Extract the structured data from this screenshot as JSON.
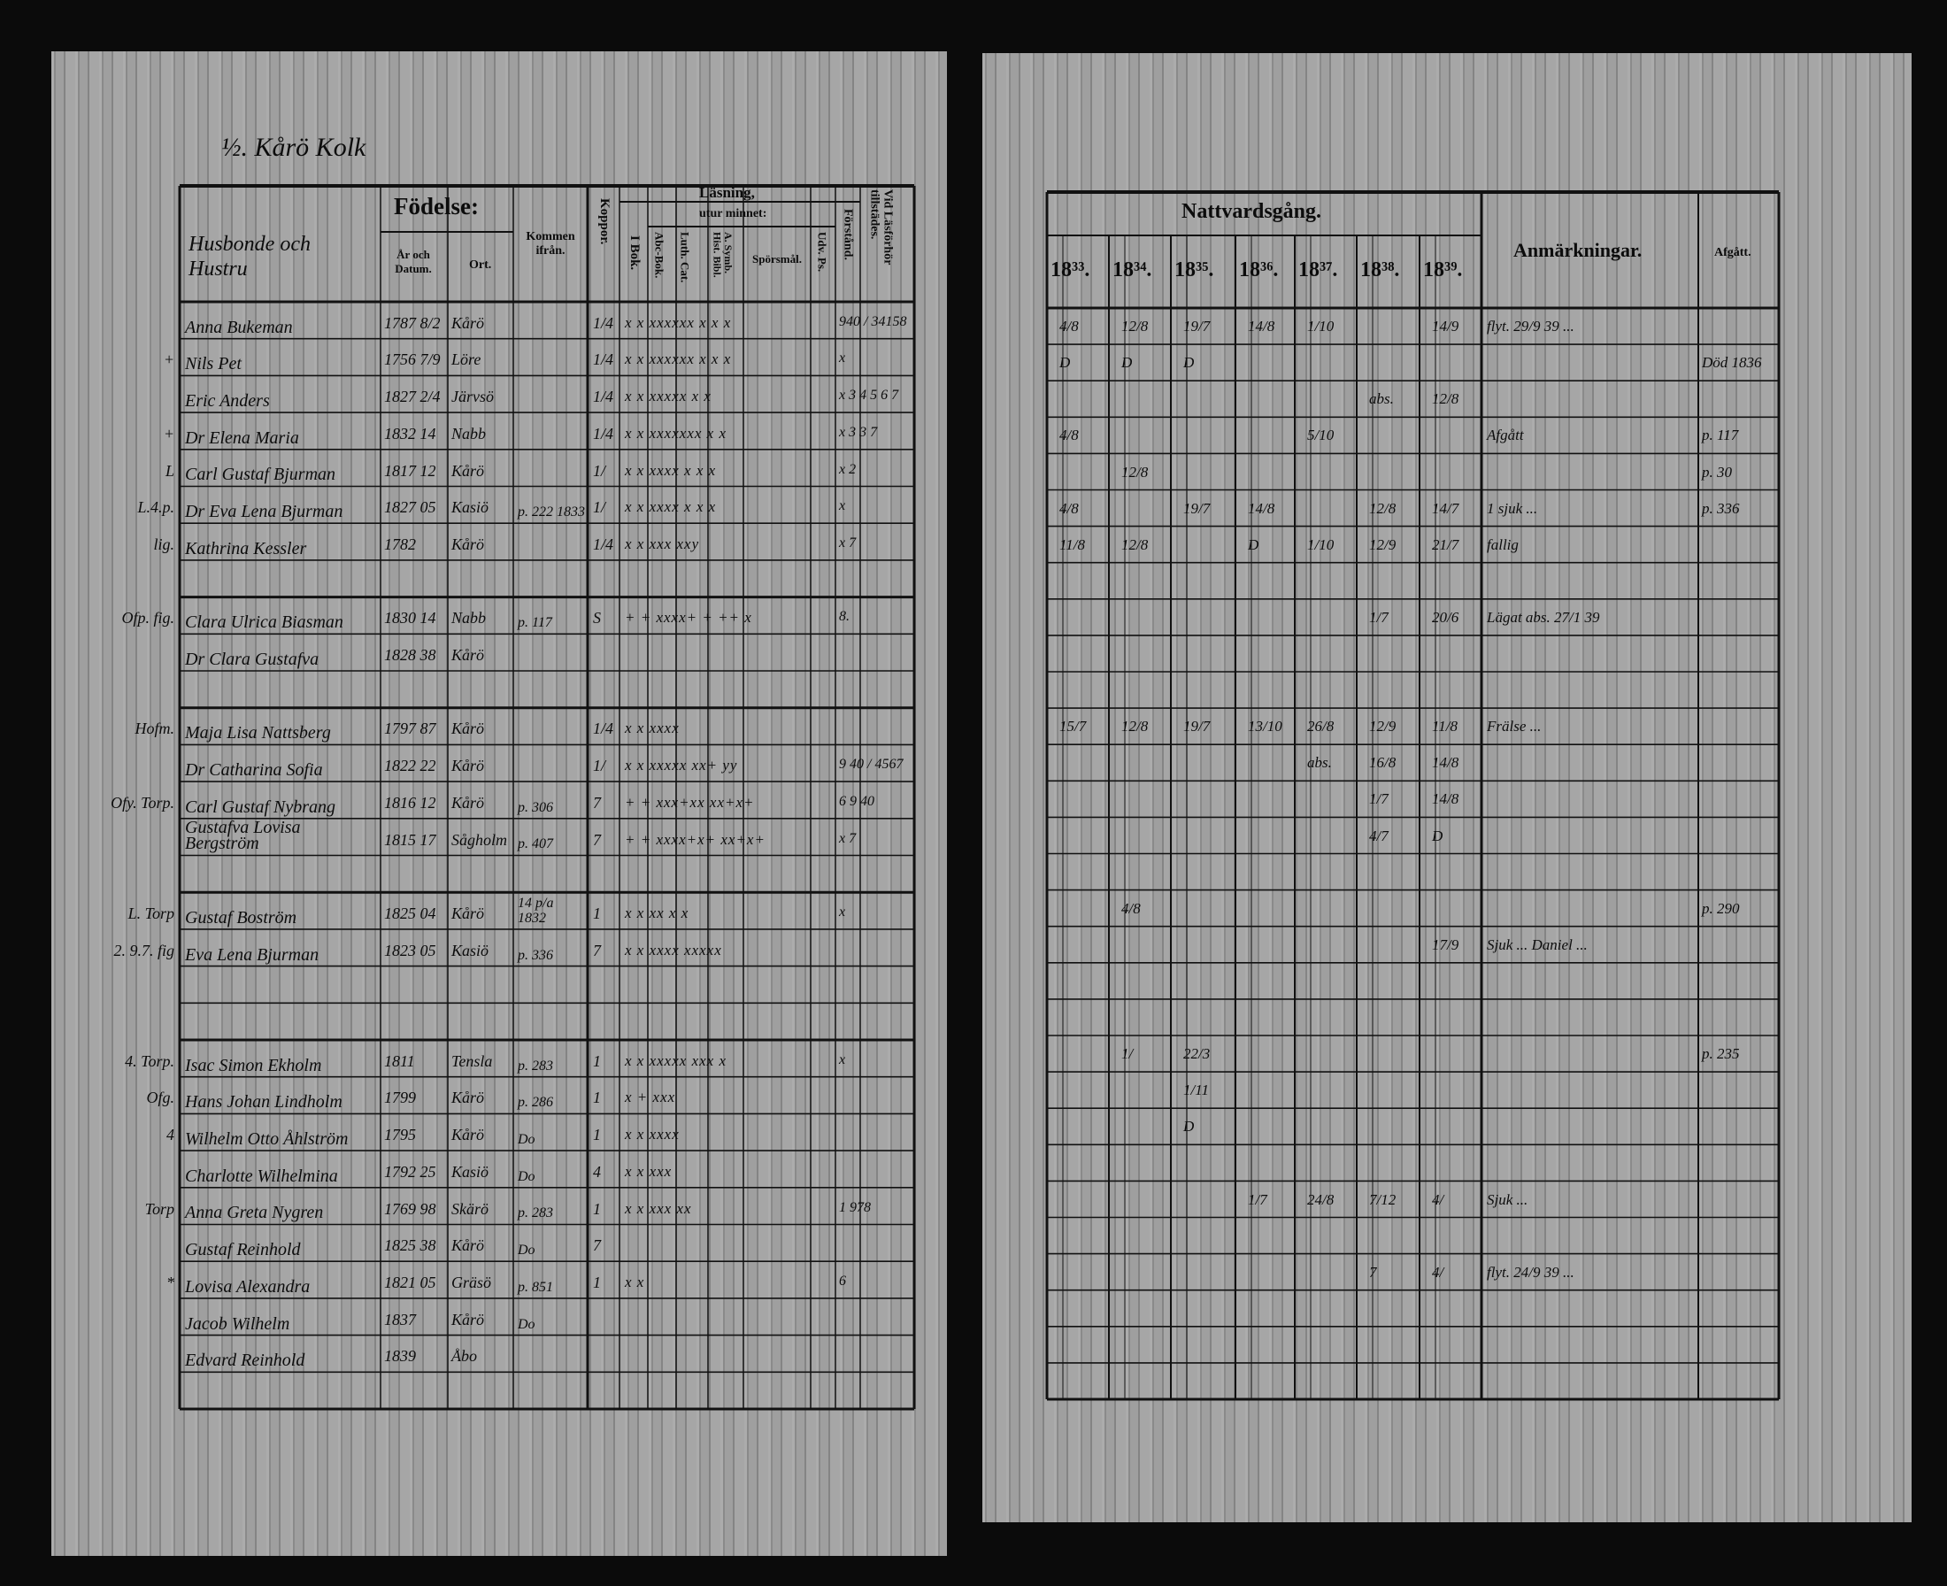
{
  "left_page": {
    "heading_handwritten": "½. Kårö Kolk",
    "headers": {
      "name_col": "Husbonde och Hustru",
      "birth": "Födelse:",
      "birth_year": "År och Datum.",
      "birth_place": "Ort.",
      "came_from": "Kommen ifrån.",
      "smallpox": "Koppor.",
      "reading": "Läsning,",
      "by_heart": "utur minnet:",
      "in_book": "I Bok.",
      "abc_book": "Abc-Bok.",
      "luth_cat": "Luth. Cat.",
      "symb_books": "A. Symb. Hist. Bibl.",
      "questions": "Spörsmål.",
      "udv_ps": "Udv. Ps.",
      "understanding": "Förstånd.",
      "examinations": "Vid Läsförhör tillstädes."
    },
    "rows": [
      {
        "row": 0,
        "mark": "",
        "name": "Anna Bukeman",
        "born": "1787 8/2",
        "place": "Kårö",
        "from": "",
        "koppor": "1/4",
        "reading": "x  x  xxxxxx  x x x",
        "exam": "940 / 34158"
      },
      {
        "row": 1,
        "mark": "+",
        "name": "Nils Pet",
        "born": "1756 7/9",
        "place": "Löre",
        "from": "",
        "koppor": "1/4",
        "reading": "x  x  xxxxxx  x x x",
        "exam": "x"
      },
      {
        "row": 2,
        "mark": "",
        "name": "Eric Anders",
        "born": "1827 2/4",
        "place": "Järvsö",
        "from": "",
        "koppor": "1/4",
        "reading": "x  x  xxxxx  x x",
        "exam": "x 3 4 5 6 7"
      },
      {
        "row": 3,
        "mark": "+",
        "name": "Dr Elena Maria",
        "born": "1832 14",
        "place": "Nabb",
        "from": "",
        "koppor": "1/4",
        "reading": "x  x  xxxxxxx x x",
        "exam": "x 3 3 7"
      },
      {
        "row": 4,
        "mark": "L",
        "name": "Carl Gustaf Bjurman",
        "born": "1817 12",
        "place": "Kårö",
        "from": "",
        "koppor": "1/",
        "reading": "x  x  xxxx  x x x",
        "exam": "x 2"
      },
      {
        "row": 5,
        "mark": "L.4.p.",
        "name": "Dr Eva Lena Bjurman",
        "born": "1827 05",
        "place": "Kasiö",
        "from": "p. 222 1833",
        "koppor": "1/",
        "reading": "x  x  xxxx  x x x",
        "exam": "x"
      },
      {
        "row": 6,
        "mark": "lig.",
        "name": "Kathrina Kessler",
        "born": "1782",
        "place": "Kårö",
        "from": "",
        "koppor": "1/4",
        "reading": "x  x  xxx xxy",
        "exam": "x 7"
      },
      {
        "row": 8,
        "mark": "Ofp. fig.",
        "name": "Clara Ulrica Biasman",
        "born": "1830 14",
        "place": "Nabb",
        "from": "p. 117",
        "koppor": "S",
        "reading": "+  +  xxxx+ +  ++ x",
        "exam": "8."
      },
      {
        "row": 9,
        "mark": "",
        "name": "Dr Clara Gustafva",
        "born": "1828 38",
        "place": "Kårö",
        "from": "",
        "koppor": "",
        "reading": "",
        "exam": ""
      },
      {
        "row": 11,
        "mark": "Hofm.",
        "name": "Maja Lisa Nattsberg",
        "born": "1797 87",
        "place": "Kårö",
        "from": "",
        "koppor": "1/4",
        "reading": "x  x  xxxx",
        "exam": ""
      },
      {
        "row": 12,
        "mark": "",
        "name": "Dr Catharina Sofia",
        "born": "1822 22",
        "place": "Kårö",
        "from": "",
        "koppor": "1/",
        "reading": "x  x  xxxxx xx+ yy",
        "exam": "9 40 / 4567"
      },
      {
        "row": 13,
        "mark": "Ofy. Torp.",
        "name": "Carl Gustaf Nybrang",
        "born": "1816 12",
        "place": "Kårö",
        "from": "p. 306",
        "koppor": "7",
        "reading": "+  +  xxx+xx xx+x+",
        "exam": "6 9 40"
      },
      {
        "row": 14,
        "mark": "",
        "name": "Gustafva Lovisa Bergström",
        "born": "1815 17",
        "place": "Sågholm",
        "from": "p. 407",
        "koppor": "7",
        "reading": "+  +  xxxx+x+ xx+x+",
        "exam": "x 7"
      },
      {
        "row": 16,
        "mark": "L. Torp",
        "name": "Gustaf Boström",
        "born": "1825 04",
        "place": "Kårö",
        "from": "14 p/a 1832",
        "koppor": "1",
        "reading": "x  x  xx  x x",
        "exam": "x"
      },
      {
        "row": 17,
        "mark": "2. 9.7. fig",
        "name": "Eva Lena Bjurman",
        "born": "1823 05",
        "place": "Kasiö",
        "from": "p. 336",
        "koppor": "7",
        "reading": "x  x  xxxx xxxxx",
        "exam": ""
      },
      {
        "row": 20,
        "mark": "4. Torp.",
        "name": "Isac Simon Ekholm",
        "born": "1811",
        "place": "Tensla",
        "from": "p. 283",
        "koppor": "1",
        "reading": "x  x  xxxxx xxx x",
        "exam": "x"
      },
      {
        "row": 21,
        "mark": "Ofg.",
        "name": "Hans Johan Lindholm",
        "born": "1799",
        "place": "Kårö",
        "from": "p. 286",
        "koppor": "1",
        "reading": "x  +  xxx",
        "exam": ""
      },
      {
        "row": 22,
        "mark": "4",
        "name": "Wilhelm Otto Åhlström",
        "born": "1795",
        "place": "Kårö",
        "from": "Do",
        "koppor": "1",
        "reading": "x  x  xxxx",
        "exam": ""
      },
      {
        "row": 23,
        "mark": "",
        "name": "Charlotte Wilhelmina",
        "born": "1792 25",
        "place": "Kasiö",
        "from": "Do",
        "koppor": "4",
        "reading": "x  x  xxx",
        "exam": ""
      },
      {
        "row": 24,
        "mark": "Torp",
        "name": "Anna Greta Nygren",
        "born": "1769 98",
        "place": "Skärö",
        "from": "p. 283",
        "koppor": "1",
        "reading": "x  x  xxx xx",
        "exam": "1 978"
      },
      {
        "row": 25,
        "mark": "",
        "name": "Gustaf Reinhold",
        "born": "1825 38",
        "place": "Kårö",
        "from": "Do",
        "koppor": "7",
        "reading": "",
        "exam": ""
      },
      {
        "row": 26,
        "mark": "*",
        "name": "Lovisa Alexandra",
        "born": "1821 05",
        "place": "Gräsö",
        "from": "p. 851",
        "koppor": "1",
        "reading": "x  x",
        "exam": "6"
      },
      {
        "row": 27,
        "mark": "",
        "name": "Jacob Wilhelm",
        "born": "1837",
        "place": "Kårö",
        "from": "Do",
        "koppor": "",
        "reading": "",
        "exam": ""
      },
      {
        "row": 28,
        "mark": "",
        "name": "Edvard Reinhold",
        "born": "1839",
        "place": "Åbo",
        "from": "",
        "koppor": "",
        "reading": "",
        "exam": ""
      }
    ]
  },
  "right_page": {
    "headers": {
      "communion": "Nattvardsgång.",
      "years": [
        "18³³.",
        "18³⁴.",
        "18³⁵.",
        "18³⁶.",
        "18³⁷.",
        "18³⁸.",
        "18³⁹."
      ],
      "remarks": "Anmärkningar.",
      "departed": "Afgått."
    },
    "rows": [
      {
        "row": 0,
        "cells": [
          "4/8",
          "12/8",
          "19/7",
          "14/8",
          "1/10",
          "",
          "14/9"
        ],
        "note": "flyt. 29/9 39 ...",
        "afgatt": ""
      },
      {
        "row": 1,
        "cells": [
          "D",
          "D",
          "D",
          "",
          "",
          "",
          ""
        ],
        "note": "",
        "afgatt": "Död 1836"
      },
      {
        "row": 2,
        "cells": [
          "",
          "",
          "",
          "",
          "",
          "abs.",
          "12/8"
        ],
        "note": "",
        "afgatt": ""
      },
      {
        "row": 3,
        "cells": [
          "4/8",
          "",
          "",
          "",
          "5/10",
          "",
          ""
        ],
        "note": "Afgått",
        "afgatt": "p. 117"
      },
      {
        "row": 4,
        "cells": [
          "",
          "12/8",
          "",
          "",
          "",
          "",
          ""
        ],
        "note": "",
        "afgatt": "p. 30"
      },
      {
        "row": 5,
        "cells": [
          "4/8",
          "",
          "19/7",
          "14/8",
          "",
          "12/8",
          "14/7"
        ],
        "note": "1 sjuk ...",
        "afgatt": "p. 336"
      },
      {
        "row": 6,
        "cells": [
          "11/8",
          "12/8",
          "",
          "D",
          "1/10",
          "12/9",
          "21/7"
        ],
        "note": "fallig",
        "afgatt": ""
      },
      {
        "row": 8,
        "cells": [
          "",
          "",
          "",
          "",
          "",
          "1/7",
          "20/6"
        ],
        "note": "Lägat abs. 27/1 39",
        "afgatt": ""
      },
      {
        "row": 11,
        "cells": [
          "15/7",
          "12/8",
          "19/7",
          "13/10",
          "26/8",
          "12/9",
          "11/8"
        ],
        "note": "Frälse ...",
        "afgatt": ""
      },
      {
        "row": 12,
        "cells": [
          "",
          "",
          "",
          "",
          "abs.",
          "16/8",
          "14/8"
        ],
        "note": "",
        "afgatt": ""
      },
      {
        "row": 13,
        "cells": [
          "",
          "",
          "",
          "",
          "",
          "1/7",
          "14/8"
        ],
        "note": "",
        "afgatt": ""
      },
      {
        "row": 14,
        "cells": [
          "",
          "",
          "",
          "",
          "",
          "4/7",
          "D"
        ],
        "note": "",
        "afgatt": ""
      },
      {
        "row": 16,
        "cells": [
          "",
          "4/8",
          "",
          "",
          "",
          "",
          ""
        ],
        "note": "",
        "afgatt": "p. 290"
      },
      {
        "row": 17,
        "cells": [
          "",
          "",
          "",
          "",
          "",
          "",
          "17/9"
        ],
        "note": "Sjuk ... Daniel ...",
        "afgatt": ""
      },
      {
        "row": 20,
        "cells": [
          "",
          "1/",
          "22/3",
          "",
          "",
          "",
          ""
        ],
        "note": "",
        "afgatt": "p. 235"
      },
      {
        "row": 21,
        "cells": [
          "",
          "",
          "1/11",
          "",
          "",
          "",
          ""
        ],
        "note": "",
        "afgatt": ""
      },
      {
        "row": 22,
        "cells": [
          "",
          "",
          "D",
          "",
          "",
          "",
          ""
        ],
        "note": "",
        "afgatt": ""
      },
      {
        "row": 24,
        "cells": [
          "",
          "",
          "",
          "1/7",
          "24/8",
          "7/12",
          "4/"
        ],
        "note": "Sjuk ...",
        "afgatt": ""
      },
      {
        "row": 26,
        "cells": [
          "",
          "",
          "",
          "",
          "",
          "7",
          "4/"
        ],
        "note": "flyt. 24/9 39 ...",
        "afgatt": ""
      }
    ]
  }
}
